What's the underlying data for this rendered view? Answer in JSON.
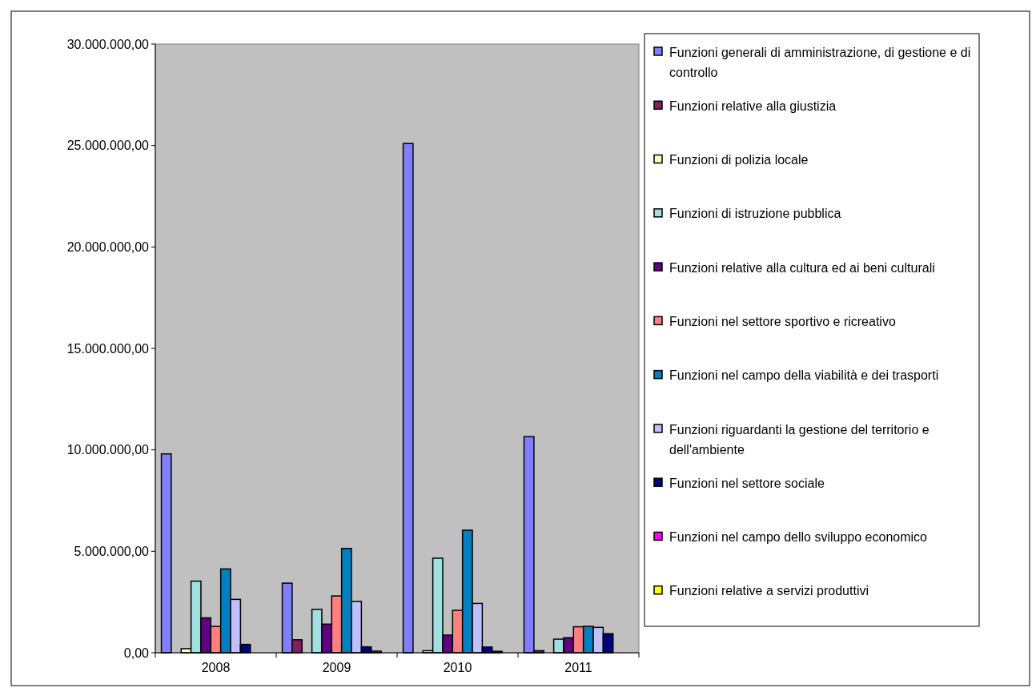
{
  "chart_data": {
    "type": "bar",
    "categories": [
      "2008",
      "2009",
      "2010",
      "2011"
    ],
    "ylim": [
      0,
      30000000
    ],
    "yticks": [
      {
        "value": 0,
        "label": "0,00"
      },
      {
        "value": 5000000,
        "label": "5.000.000,00"
      },
      {
        "value": 10000000,
        "label": "10.000.000,00"
      },
      {
        "value": 15000000,
        "label": "15.000.000,00"
      },
      {
        "value": 20000000,
        "label": "20.000.000,00"
      },
      {
        "value": 25000000,
        "label": "25.000.000,00"
      },
      {
        "value": 30000000,
        "label": "30.000.000,00"
      }
    ],
    "grid": false,
    "legend": "right",
    "series": [
      {
        "name": "Funzioni generali di amministrazione, di gestione e di controllo",
        "color": "#8080ff",
        "values": [
          9800000,
          3430000,
          25100000,
          10650000
        ]
      },
      {
        "name": "Funzioni relative alla giustizia",
        "color": "#802060",
        "values": [
          0,
          640000,
          0,
          100000
        ]
      },
      {
        "name": "Funzioni di polizia locale",
        "color": "#ffffc0",
        "values": [
          200000,
          0,
          100000,
          0
        ]
      },
      {
        "name": "Funzioni di istruzione pubblica",
        "color": "#a0e0e0",
        "values": [
          3530000,
          2140000,
          4660000,
          670000
        ]
      },
      {
        "name": "Funzioni relative alla cultura ed ai beni culturali",
        "color": "#600080",
        "values": [
          1720000,
          1410000,
          870000,
          740000
        ]
      },
      {
        "name": "Funzioni nel settore sportivo e ricreativo",
        "color": "#ff8080",
        "values": [
          1300000,
          2800000,
          2090000,
          1280000
        ]
      },
      {
        "name": "Funzioni nel campo della viabilità e dei trasporti",
        "color": "#0080c0",
        "values": [
          4130000,
          5140000,
          6040000,
          1300000
        ]
      },
      {
        "name": "Funzioni riguardanti la gestione del territorio e dell'ambiente",
        "color": "#c0c0ff",
        "values": [
          2630000,
          2530000,
          2430000,
          1250000
        ]
      },
      {
        "name": "Funzioni nel settore sociale",
        "color": "#000080",
        "values": [
          410000,
          290000,
          280000,
          940000
        ]
      },
      {
        "name": "Funzioni nel campo dello sviluppo economico",
        "color": "#ff00ff",
        "values": [
          0,
          80000,
          70000,
          0
        ]
      },
      {
        "name": "Funzioni relative a servizi produttivi",
        "color": "#ffff00",
        "values": [
          0,
          0,
          0,
          0
        ]
      }
    ]
  }
}
